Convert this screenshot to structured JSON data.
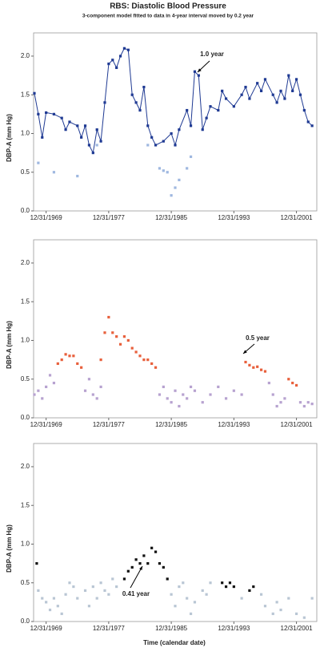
{
  "chart_data": [
    {
      "type": "line",
      "title": "RBS: Diastolic Blood Pressure",
      "subtitle": "3-component model fitted to data in 4-year interval moved by 0.2 year",
      "ylabel": "DBP-A (mm Hg)",
      "xlim": [
        1968.4,
        2004.6
      ],
      "ylim": [
        0,
        2.3
      ],
      "xticks": [
        {
          "value": 1970,
          "label": "12/31/1969"
        },
        {
          "value": 1978,
          "label": "12/31/1977"
        },
        {
          "value": 1986,
          "label": "12/31/1985"
        },
        {
          "value": 1994,
          "label": "12/31/1993"
        },
        {
          "value": 2002,
          "label": "12/31/2001"
        }
      ],
      "yticks": [
        {
          "value": 0,
          "label": "0.0"
        },
        {
          "value": 0.5,
          "label": "0.5"
        },
        {
          "value": 1,
          "label": "1.0"
        },
        {
          "value": 1.5,
          "label": "1.5"
        },
        {
          "value": 2,
          "label": "2.0"
        }
      ],
      "annotations": [
        {
          "text": "1.0 year"
        }
      ],
      "series": [
        {
          "color": "#1f3a93",
          "line": true,
          "x": [
            1968.5,
            1969,
            1969.5,
            1970,
            1971,
            1972,
            1972.5,
            1973,
            1974,
            1974.5,
            1975,
            1975.5,
            1976,
            1976.5,
            1977,
            1977.5,
            1978,
            1978.5,
            1979,
            1979.5,
            1980,
            1980.5,
            1981,
            1981.5,
            1982,
            1982.5,
            1983,
            1983.5,
            1984,
            1985,
            1986,
            1986.5,
            1987,
            1988,
            1988.5,
            1989,
            1989.5,
            1990,
            1990.5,
            1991,
            1992,
            1992.5,
            1993,
            1994,
            1995,
            1995.5,
            1996,
            1997,
            1997.5,
            1998,
            1999,
            1999.5,
            2000,
            2000.5,
            2001,
            2001.5,
            2002,
            2002.5,
            2003,
            2003.5,
            2004
          ],
          "values": [
            1.52,
            1.25,
            0.95,
            1.27,
            1.25,
            1.2,
            1.05,
            1.15,
            1.1,
            0.95,
            1.1,
            0.85,
            0.75,
            1.05,
            0.9,
            1.4,
            1.9,
            1.95,
            1.85,
            2.0,
            2.1,
            2.08,
            1.5,
            1.4,
            1.3,
            1.6,
            1.1,
            0.95,
            0.85,
            0.9,
            1.0,
            0.85,
            1.05,
            1.3,
            1.1,
            1.8,
            1.75,
            1.05,
            1.2,
            1.35,
            1.3,
            1.55,
            1.45,
            1.35,
            1.5,
            1.6,
            1.45,
            1.65,
            1.55,
            1.7,
            1.5,
            1.4,
            1.55,
            1.45,
            1.75,
            1.55,
            1.7,
            1.5,
            1.3,
            1.15,
            1.1
          ]
        },
        {
          "color": "#9fb8e0",
          "line": false,
          "x": [
            1969,
            1971,
            1974,
            1976.5,
            1983,
            1984.5,
            1985,
            1985.5,
            1986,
            1986.5,
            1987,
            1988,
            1988.5
          ],
          "values": [
            0.62,
            0.5,
            0.45,
            0.85,
            0.85,
            0.55,
            0.52,
            0.5,
            0.2,
            0.3,
            0.4,
            0.55,
            0.7
          ]
        }
      ]
    },
    {
      "type": "scatter",
      "ylabel": "DBP-A (mm Hg)",
      "xlim": [
        1968.4,
        2004.6
      ],
      "ylim": [
        0,
        2.3
      ],
      "xticks": [
        {
          "value": 1970,
          "label": "12/31/1969"
        },
        {
          "value": 1978,
          "label": "12/31/1977"
        },
        {
          "value": 1986,
          "label": "12/31/1985"
        },
        {
          "value": 1994,
          "label": "12/31/1993"
        },
        {
          "value": 2002,
          "label": "12/31/2001"
        }
      ],
      "yticks": [
        {
          "value": 0,
          "label": "0.0"
        },
        {
          "value": 0.5,
          "label": "0.5"
        },
        {
          "value": 1,
          "label": "1.0"
        },
        {
          "value": 1.5,
          "label": "1.5"
        },
        {
          "value": 2,
          "label": "2.0"
        }
      ],
      "annotations": [
        {
          "text": "0.5 year"
        }
      ],
      "series": [
        {
          "color": "#e8603c",
          "x": [
            1971.5,
            1972,
            1972.5,
            1973,
            1973.5,
            1974,
            1974.5,
            1977,
            1977.5,
            1978,
            1978.5,
            1979,
            1979.5,
            1980,
            1980.5,
            1981,
            1981.5,
            1982,
            1982.5,
            1983,
            1983.5,
            1984,
            1995.5,
            1996,
            1996.5,
            1997,
            1997.5,
            1998,
            2001,
            2001.5,
            2002
          ],
          "values": [
            0.7,
            0.75,
            0.82,
            0.8,
            0.8,
            0.7,
            0.65,
            0.75,
            1.1,
            1.3,
            1.1,
            1.05,
            0.95,
            1.05,
            1.0,
            0.9,
            0.85,
            0.8,
            0.75,
            0.75,
            0.7,
            0.65,
            0.72,
            0.68,
            0.65,
            0.66,
            0.62,
            0.6,
            0.5,
            0.45,
            0.42
          ]
        },
        {
          "color": "#b7a2d0",
          "x": [
            1968.5,
            1969,
            1969.5,
            1970,
            1970.5,
            1971,
            1975,
            1975.5,
            1976,
            1976.5,
            1977,
            1984.5,
            1985,
            1985.5,
            1986,
            1986.5,
            1987,
            1987.5,
            1988,
            1988.5,
            1989,
            1990,
            1991,
            1992,
            1993,
            1994,
            1995,
            1998.5,
            1999,
            1999.5,
            2000,
            2000.5,
            2002.5,
            2003,
            2003.5,
            2004
          ],
          "values": [
            0.3,
            0.35,
            0.25,
            0.4,
            0.55,
            0.45,
            0.35,
            0.5,
            0.3,
            0.25,
            0.4,
            0.3,
            0.4,
            0.25,
            0.2,
            0.35,
            0.15,
            0.3,
            0.25,
            0.4,
            0.35,
            0.2,
            0.3,
            0.4,
            0.25,
            0.35,
            0.3,
            0.45,
            0.3,
            0.15,
            0.2,
            0.25,
            0.2,
            0.15,
            0.2,
            0.18
          ]
        }
      ]
    },
    {
      "type": "scatter",
      "ylabel": "DBP-A (mm Hg)",
      "xlabel": "Time (calendar date)",
      "xlim": [
        1968.4,
        2004.6
      ],
      "ylim": [
        0,
        2.3
      ],
      "xticks": [
        {
          "value": 1970,
          "label": "12/31/1969"
        },
        {
          "value": 1978,
          "label": "12/31/1977"
        },
        {
          "value": 1986,
          "label": "12/31/1985"
        },
        {
          "value": 1994,
          "label": "12/31/1993"
        },
        {
          "value": 2002,
          "label": "12/31/2001"
        }
      ],
      "yticks": [
        {
          "value": 0,
          "label": "0.0"
        },
        {
          "value": 0.5,
          "label": "0.5"
        },
        {
          "value": 1,
          "label": "1.0"
        },
        {
          "value": 1.5,
          "label": "1.5"
        },
        {
          "value": 2,
          "label": "2.0"
        }
      ],
      "annotations": [
        {
          "text": "0.41 year"
        }
      ],
      "series": [
        {
          "color": "#111111",
          "x": [
            1968.8,
            1980,
            1980.5,
            1981,
            1981.5,
            1982,
            1982.5,
            1983,
            1983.5,
            1984,
            1984.5,
            1985,
            1985.5,
            1992.5,
            1993,
            1993.5,
            1994,
            1996,
            1996.5
          ],
          "values": [
            0.75,
            0.55,
            0.65,
            0.7,
            0.8,
            0.75,
            0.85,
            0.75,
            0.95,
            0.9,
            0.75,
            0.7,
            0.55,
            0.5,
            0.45,
            0.5,
            0.45,
            0.4,
            0.45
          ]
        },
        {
          "color": "#b9c6d4",
          "x": [
            1969,
            1969.5,
            1970,
            1970.5,
            1971,
            1971.5,
            1972,
            1972.5,
            1973,
            1973.5,
            1974,
            1975,
            1975.5,
            1976,
            1976.5,
            1977,
            1977.5,
            1978,
            1978.5,
            1979,
            1986,
            1986.5,
            1987,
            1987.5,
            1988,
            1988.5,
            1989,
            1990,
            1990.5,
            1991,
            1995,
            1997.5,
            1998,
            1999,
            1999.5,
            2000,
            2001,
            2002,
            2003,
            2004
          ],
          "values": [
            0.4,
            0.3,
            0.25,
            0.15,
            0.3,
            0.2,
            0.1,
            0.35,
            0.5,
            0.45,
            0.3,
            0.4,
            0.2,
            0.45,
            0.3,
            0.5,
            0.4,
            0.35,
            0.55,
            0.45,
            0.35,
            0.2,
            0.45,
            0.5,
            0.3,
            0.1,
            0.25,
            0.4,
            0.35,
            0.5,
            0.3,
            0.35,
            0.2,
            0.1,
            0.25,
            0.15,
            0.3,
            0.1,
            0.05,
            0.3
          ]
        }
      ]
    }
  ]
}
